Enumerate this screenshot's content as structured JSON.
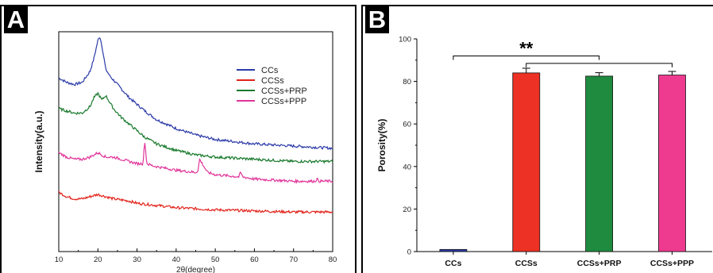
{
  "panels": {
    "a": {
      "letter": "A"
    },
    "b": {
      "letter": "B"
    }
  },
  "chart_data": [
    {
      "panel": "A",
      "type": "line",
      "xlabel": "2θ(degree)",
      "ylabel": "Intensity(a.u.)",
      "xlim": [
        10,
        80
      ],
      "x_ticks": [
        10,
        20,
        30,
        40,
        50,
        60,
        70,
        80
      ],
      "y_ticks_labeled": false,
      "legend_position": "top-right",
      "series": [
        {
          "name": "CCs",
          "color": "#2b3aa8",
          "x": [
            10,
            12,
            14,
            16,
            18,
            19,
            20,
            20.5,
            21,
            22,
            23,
            24,
            26,
            28,
            30,
            32,
            35,
            40,
            45,
            50,
            60,
            70,
            80
          ],
          "y": [
            0.79,
            0.77,
            0.76,
            0.77,
            0.82,
            0.88,
            0.96,
            0.98,
            0.94,
            0.83,
            0.8,
            0.78,
            0.74,
            0.7,
            0.67,
            0.64,
            0.6,
            0.56,
            0.53,
            0.51,
            0.49,
            0.48,
            0.47
          ]
        },
        {
          "name": "CCSs",
          "color": "#e2231a",
          "x": [
            10,
            12,
            14,
            16,
            18,
            20,
            22,
            24,
            28,
            30,
            35,
            40,
            50,
            60,
            70,
            80
          ],
          "y": [
            0.27,
            0.25,
            0.24,
            0.24,
            0.25,
            0.26,
            0.25,
            0.24,
            0.23,
            0.22,
            0.21,
            0.2,
            0.19,
            0.185,
            0.18,
            0.18
          ]
        },
        {
          "name": "CCSs+PRP",
          "color": "#1a7a2e",
          "x": [
            10,
            12,
            14,
            16,
            18,
            19,
            20,
            21,
            22,
            23,
            24,
            26,
            28,
            30,
            32,
            35,
            40,
            45,
            50,
            60,
            70,
            80
          ],
          "y": [
            0.65,
            0.64,
            0.63,
            0.63,
            0.66,
            0.7,
            0.72,
            0.69,
            0.71,
            0.68,
            0.65,
            0.61,
            0.58,
            0.55,
            0.52,
            0.49,
            0.46,
            0.44,
            0.43,
            0.42,
            0.41,
            0.41
          ]
        },
        {
          "name": "CCSs+PPP",
          "color": "#e0359a",
          "x": [
            10,
            12,
            14,
            16,
            18,
            20,
            22,
            24,
            26,
            28,
            30,
            31.5,
            32,
            32.5,
            34,
            40,
            45,
            45.6,
            46,
            48,
            50,
            56,
            56.5,
            57,
            60,
            70,
            75.5,
            76,
            76.5,
            80
          ],
          "y": [
            0.45,
            0.43,
            0.42,
            0.42,
            0.43,
            0.45,
            0.43,
            0.43,
            0.42,
            0.41,
            0.4,
            0.4,
            0.5,
            0.4,
            0.39,
            0.37,
            0.36,
            0.37,
            0.42,
            0.36,
            0.35,
            0.34,
            0.36,
            0.34,
            0.33,
            0.32,
            0.32,
            0.33,
            0.32,
            0.32
          ]
        }
      ]
    },
    {
      "panel": "B",
      "type": "bar",
      "ylabel": "Porosity(%)",
      "ylim": [
        0,
        100
      ],
      "y_ticks": [
        0,
        20,
        40,
        60,
        80,
        100
      ],
      "categories": [
        "CCs",
        "CCSs",
        "CCSs+PRP",
        "CCSs+PPP"
      ],
      "values": [
        1,
        84,
        82.5,
        83
      ],
      "errors": [
        0,
        2.2,
        1.6,
        1.7
      ],
      "colors": [
        "#2b3aa8",
        "#ed3124",
        "#1e8b3e",
        "#ee3a8f"
      ],
      "annotation": {
        "text": "**",
        "from_category": "CCs",
        "to_categories": [
          "CCSs",
          "CCSs+PRP",
          "CCSs+PPP"
        ]
      }
    }
  ]
}
